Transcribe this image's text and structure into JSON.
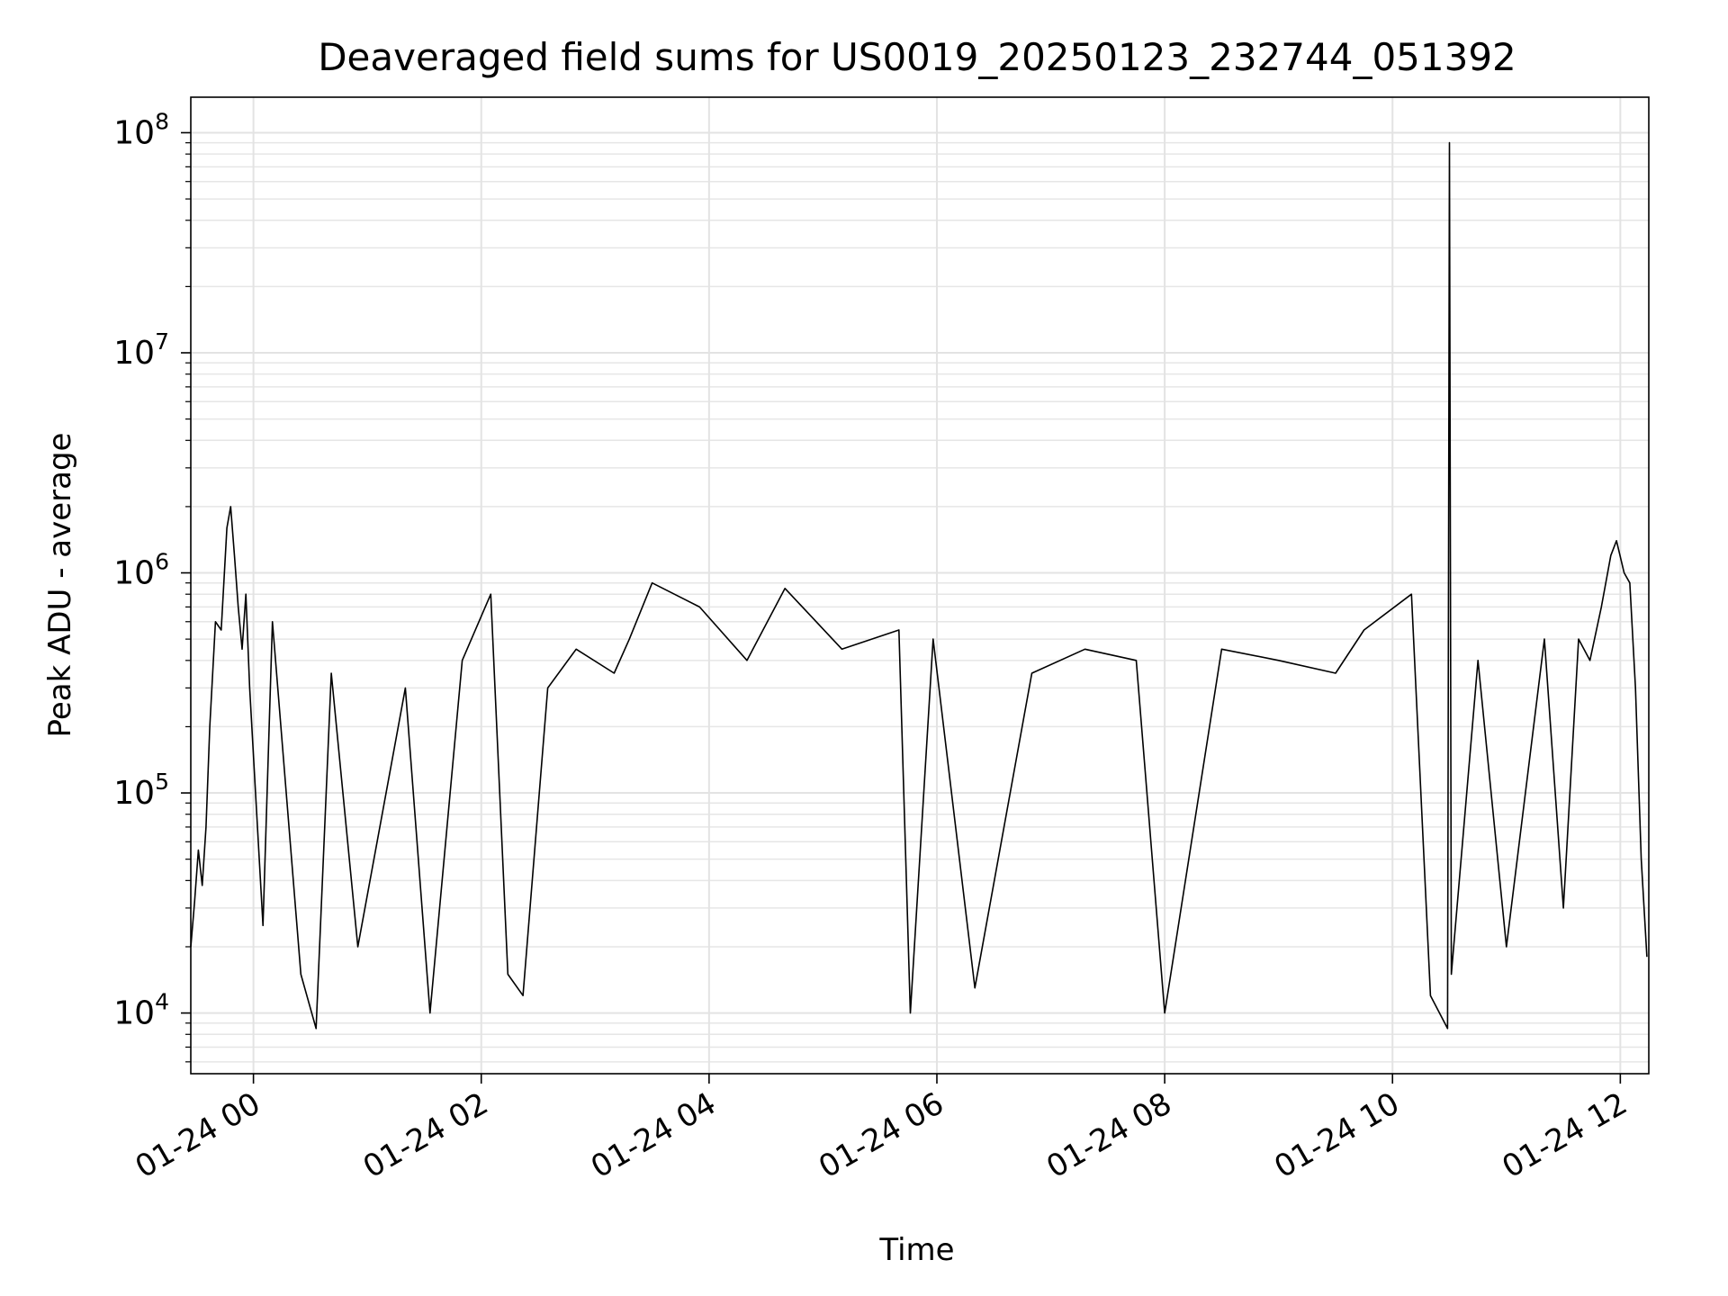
{
  "chart_data": {
    "type": "line",
    "title": "Deaveraged field sums for US0019_20250123_232744_051392",
    "xlabel": "Time",
    "ylabel": "Peak ADU - average",
    "yscale": "log",
    "ylim": [
      5300,
      145000000
    ],
    "xlim": [
      "2025-01-23 23:27",
      "2025-01-24 12:15"
    ],
    "x_ticks": [
      {
        "time": "2025-01-24 00:00",
        "label": "01-24 00"
      },
      {
        "time": "2025-01-24 02:00",
        "label": "01-24 02"
      },
      {
        "time": "2025-01-24 04:00",
        "label": "01-24 04"
      },
      {
        "time": "2025-01-24 06:00",
        "label": "01-24 06"
      },
      {
        "time": "2025-01-24 08:00",
        "label": "01-24 08"
      },
      {
        "time": "2025-01-24 10:00",
        "label": "01-24 10"
      },
      {
        "time": "2025-01-24 12:00",
        "label": "01-24 12"
      }
    ],
    "y_ticks": [
      {
        "value": 10000,
        "base": "10",
        "exp": "4"
      },
      {
        "value": 100000,
        "base": "10",
        "exp": "5"
      },
      {
        "value": 1000000,
        "base": "10",
        "exp": "6"
      },
      {
        "value": 10000000,
        "base": "10",
        "exp": "7"
      },
      {
        "value": 100000000,
        "base": "10",
        "exp": "8"
      }
    ],
    "grid": true,
    "line_color": "#000000",
    "series": [
      {
        "x": [
          "2025-01-23 23:27",
          "2025-01-23 23:29",
          "2025-01-23 23:31",
          "2025-01-23 23:33",
          "2025-01-23 23:35",
          "2025-01-23 23:37",
          "2025-01-23 23:40",
          "2025-01-23 23:43",
          "2025-01-23 23:46",
          "2025-01-23 23:48",
          "2025-01-23 23:50",
          "2025-01-23 23:52",
          "2025-01-23 23:54",
          "2025-01-23 23:56",
          "2025-01-23 23:58",
          "2025-01-24 00:05",
          "2025-01-24 00:10",
          "2025-01-24 00:25",
          "2025-01-24 00:33",
          "2025-01-24 00:41",
          "2025-01-24 00:55",
          "2025-01-24 01:20",
          "2025-01-24 01:33",
          "2025-01-24 01:50",
          "2025-01-24 02:05",
          "2025-01-24 02:14",
          "2025-01-24 02:22",
          "2025-01-24 02:35",
          "2025-01-24 02:50",
          "2025-01-24 03:10",
          "2025-01-24 03:18",
          "2025-01-24 03:30",
          "2025-01-24 03:55",
          "2025-01-24 04:20",
          "2025-01-24 04:40",
          "2025-01-24 05:10",
          "2025-01-24 05:40",
          "2025-01-24 05:46",
          "2025-01-24 05:58",
          "2025-01-24 06:20",
          "2025-01-24 06:50",
          "2025-01-24 07:18",
          "2025-01-24 07:45",
          "2025-01-24 08:00",
          "2025-01-24 08:30",
          "2025-01-24 09:00",
          "2025-01-24 09:30",
          "2025-01-24 09:45",
          "2025-01-24 10:10",
          "2025-01-24 10:20",
          "2025-01-24 10:29",
          "2025-01-24 10:30",
          "2025-01-24 10:31",
          "2025-01-24 10:45",
          "2025-01-24 11:00",
          "2025-01-24 11:20",
          "2025-01-24 11:30",
          "2025-01-24 11:38",
          "2025-01-24 11:44",
          "2025-01-24 11:50",
          "2025-01-24 11:55",
          "2025-01-24 11:58",
          "2025-01-24 12:02",
          "2025-01-24 12:05",
          "2025-01-24 12:08",
          "2025-01-24 12:11",
          "2025-01-24 12:14"
        ],
        "y": [
          20000,
          32000,
          55000,
          38000,
          70000,
          200000,
          600000,
          550000,
          1600000,
          2000000,
          1200000,
          700000,
          450000,
          800000,
          300000,
          25000,
          600000,
          15000,
          8500,
          350000,
          20000,
          300000,
          10000,
          400000,
          800000,
          15000,
          12000,
          300000,
          450000,
          350000,
          500000,
          900000,
          700000,
          400000,
          850000,
          450000,
          550000,
          10000,
          500000,
          13000,
          350000,
          450000,
          400000,
          10000,
          450000,
          400000,
          350000,
          550000,
          800000,
          12000,
          8500,
          90000000,
          15000,
          400000,
          20000,
          500000,
          30000,
          500000,
          400000,
          700000,
          1200000,
          1400000,
          1000000,
          900000,
          300000,
          50000,
          18000
        ]
      }
    ]
  }
}
